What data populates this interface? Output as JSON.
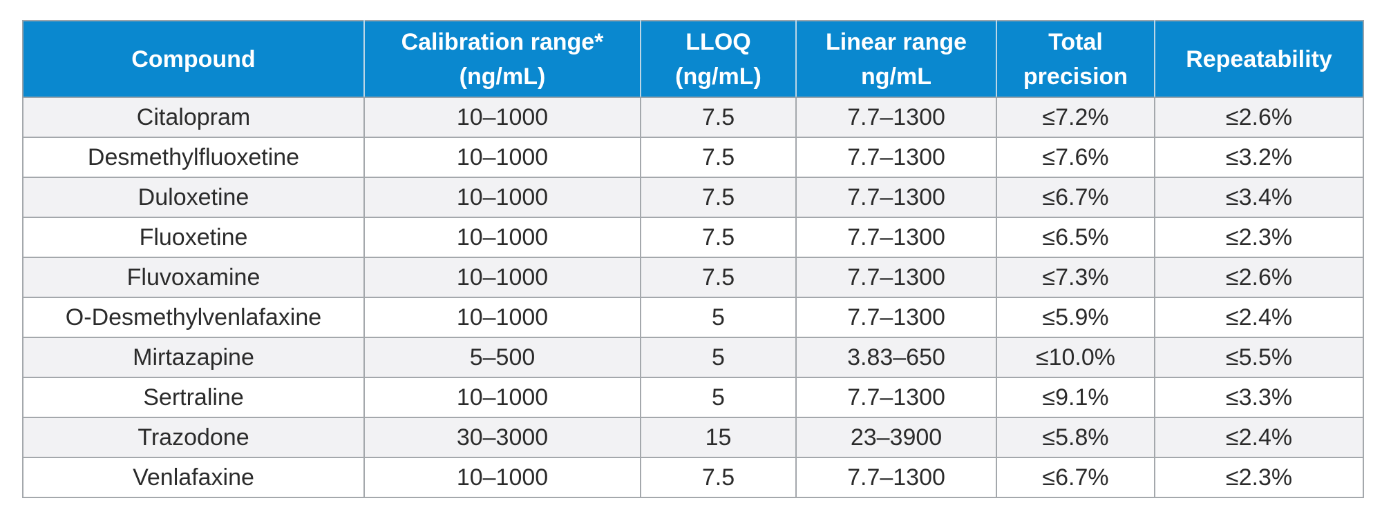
{
  "table": {
    "headers": [
      [
        "Compound"
      ],
      [
        "Calibration range*",
        "(ng/mL)"
      ],
      [
        "LLOQ",
        "(ng/mL)"
      ],
      [
        "Linear range",
        "ng/mL"
      ],
      [
        "Total",
        "precision"
      ],
      [
        "Repeatability"
      ]
    ],
    "rows": [
      [
        "Citalopram",
        "10–1000",
        "7.5",
        "7.7–1300",
        "≤7.2%",
        "≤2.6%"
      ],
      [
        "Desmethylfluoxetine",
        "10–1000",
        "7.5",
        "7.7–1300",
        "≤7.6%",
        "≤3.2%"
      ],
      [
        "Duloxetine",
        "10–1000",
        "7.5",
        "7.7–1300",
        "≤6.7%",
        "≤3.4%"
      ],
      [
        "Fluoxetine",
        "10–1000",
        "7.5",
        "7.7–1300",
        "≤6.5%",
        "≤2.3%"
      ],
      [
        "Fluvoxamine",
        "10–1000",
        "7.5",
        "7.7–1300",
        "≤7.3%",
        "≤2.6%"
      ],
      [
        "O-Desmethylvenlafaxine",
        "10–1000",
        "5",
        "7.7–1300",
        "≤5.9%",
        "≤2.4%"
      ],
      [
        "Mirtazapine",
        "5–500",
        "5",
        "3.83–650",
        "≤10.0%",
        "≤5.5%"
      ],
      [
        "Sertraline",
        "10–1000",
        "5",
        "7.7–1300",
        "≤9.1%",
        "≤3.3%"
      ],
      [
        "Trazodone",
        "30–3000",
        "15",
        "23–3900",
        "≤5.8%",
        "≤2.4%"
      ],
      [
        "Venlafaxine",
        "10–1000",
        "7.5",
        "7.7–1300",
        "≤6.7%",
        "≤2.3%"
      ]
    ]
  },
  "colors": {
    "header_bg": "#0a88cf",
    "header_text": "#ffffff",
    "row_alt_bg": "#f2f2f4",
    "row_bg": "#ffffff",
    "border": "#a4a8ac"
  }
}
